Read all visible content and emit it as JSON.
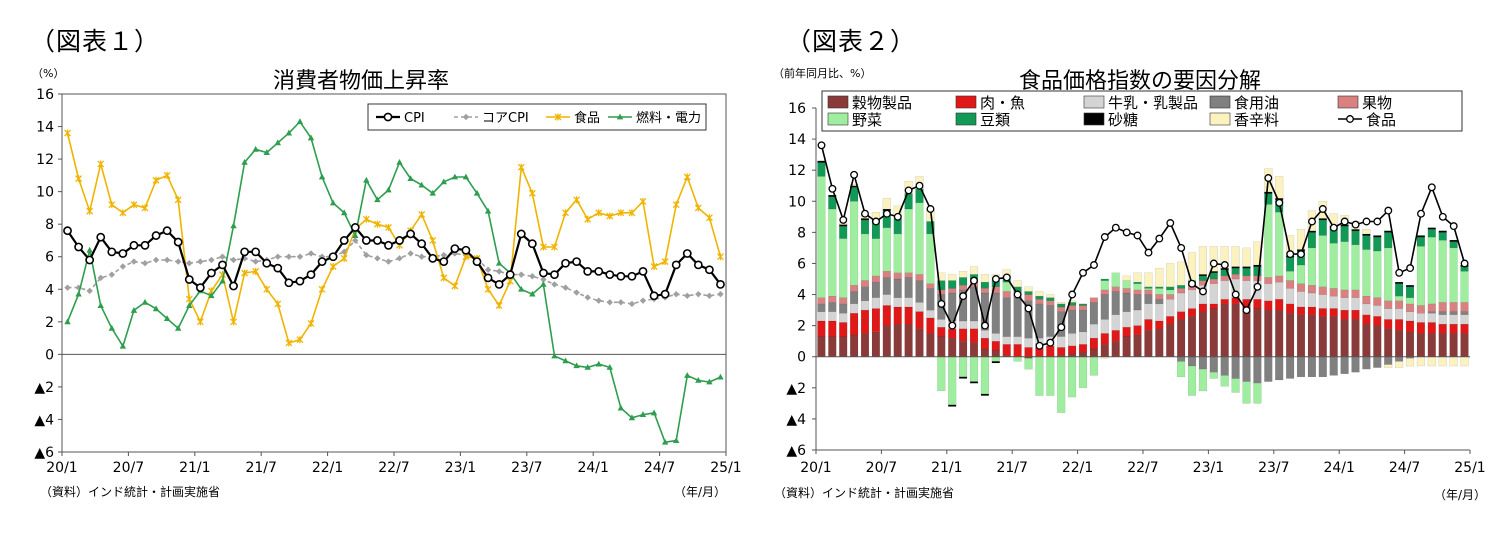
{
  "figure1": {
    "label": "（図表１）",
    "chart_data": {
      "type": "line",
      "title": "消費者物価上昇率",
      "unit_label": "（%）",
      "source": "（資料）インド統計・計画実施省",
      "x_unit": "（年/月）",
      "x_tick_labels": [
        "20/1",
        "20/7",
        "21/1",
        "21/7",
        "22/1",
        "22/7",
        "23/1",
        "23/7",
        "24/1",
        "24/7",
        "25/1"
      ],
      "y_ticks": [
        16,
        14,
        12,
        10,
        8,
        6,
        4,
        2,
        0,
        -2,
        -4,
        -6
      ],
      "y_tick_labels": [
        "16",
        "14",
        "12",
        "10",
        "8",
        "6",
        "4",
        "2",
        "0",
        "▲2",
        "▲4",
        "▲6"
      ],
      "ylim": [
        -6,
        16
      ],
      "legend_position": "top-right",
      "grid": false,
      "series": [
        {
          "name": "CPI",
          "color": "#000000",
          "marker": "circle",
          "style": "solid",
          "values": [
            7.6,
            6.6,
            5.8,
            7.2,
            6.3,
            6.2,
            6.7,
            6.7,
            7.3,
            7.6,
            6.9,
            4.6,
            4.1,
            5.0,
            5.5,
            4.2,
            6.3,
            6.3,
            5.6,
            5.3,
            4.4,
            4.5,
            4.9,
            5.7,
            6.0,
            7.0,
            7.8,
            7.0,
            7.0,
            6.7,
            7.0,
            7.4,
            6.8,
            5.9,
            5.7,
            6.5,
            6.4,
            5.7,
            4.7,
            4.3,
            4.9,
            7.4,
            6.8,
            5.0,
            4.9,
            5.6,
            5.7,
            5.1,
            5.1,
            4.9,
            4.8,
            4.8,
            5.1,
            3.6,
            3.7,
            5.5,
            6.2,
            5.5,
            5.2,
            4.3
          ]
        },
        {
          "name": "コアCPI",
          "color": "#a0a0a0",
          "marker": "diamond",
          "style": "dashed",
          "values": [
            4.1,
            4.1,
            3.9,
            4.7,
            4.9,
            5.4,
            5.7,
            5.6,
            5.8,
            5.8,
            5.7,
            5.6,
            5.7,
            5.8,
            6.0,
            5.8,
            5.9,
            5.7,
            5.8,
            6.0,
            6.0,
            6.0,
            6.2,
            6.0,
            6.0,
            6.3,
            7.0,
            6.1,
            5.9,
            5.7,
            5.9,
            6.2,
            6.0,
            6.0,
            6.1,
            6.2,
            6.1,
            5.9,
            5.2,
            5.1,
            4.9,
            4.9,
            4.8,
            4.6,
            4.3,
            4.1,
            3.8,
            3.5,
            3.3,
            3.2,
            3.2,
            3.1,
            3.3,
            3.4,
            3.5,
            3.7,
            3.6,
            3.7,
            3.6,
            3.7
          ]
        },
        {
          "name": "食品",
          "color": "#f0b400",
          "marker": "star",
          "style": "solid",
          "values": [
            13.6,
            10.8,
            8.8,
            11.7,
            9.2,
            8.7,
            9.2,
            9.0,
            10.7,
            11.0,
            9.5,
            3.4,
            2.0,
            3.9,
            4.9,
            2.0,
            5.0,
            5.1,
            4.0,
            3.1,
            0.7,
            0.9,
            1.9,
            4.0,
            5.4,
            5.9,
            7.7,
            8.3,
            8.0,
            7.8,
            6.7,
            7.6,
            8.6,
            7.0,
            4.7,
            4.2,
            6.0,
            5.9,
            4.0,
            3.0,
            4.5,
            11.5,
            9.9,
            6.6,
            6.6,
            8.7,
            9.5,
            8.3,
            8.7,
            8.5,
            8.7,
            8.7,
            9.4,
            5.4,
            5.7,
            9.2,
            10.9,
            9.0,
            8.4,
            6.0
          ]
        },
        {
          "name": "燃料・電力",
          "color": "#2e9e4e",
          "marker": "triangle",
          "style": "solid",
          "values": [
            2.0,
            3.7,
            6.4,
            3.0,
            1.6,
            0.5,
            2.7,
            3.2,
            2.8,
            2.2,
            1.6,
            3.0,
            3.9,
            3.6,
            4.5,
            7.9,
            11.8,
            12.6,
            12.4,
            13.0,
            13.6,
            14.3,
            13.3,
            10.9,
            9.3,
            8.7,
            7.3,
            10.7,
            9.5,
            10.1,
            11.8,
            10.8,
            10.4,
            9.9,
            10.6,
            10.9,
            10.9,
            9.9,
            8.8,
            5.6,
            5.0,
            4.0,
            3.7,
            4.3,
            -0.1,
            -0.4,
            -0.7,
            -0.8,
            -0.6,
            -0.8,
            -3.3,
            -3.9,
            -3.7,
            -3.6,
            -5.4,
            -5.3,
            -1.3,
            -1.6,
            -1.7,
            -1.4
          ]
        }
      ]
    }
  },
  "figure2": {
    "label": "（図表２）",
    "chart_data": {
      "type": "bar",
      "stacked": true,
      "title": "食品価格指数の要因分解",
      "unit_label": "（前年同月比、%）",
      "source": "（資料）インド統計・計画実施省",
      "x_unit": "（年/月）",
      "x_tick_labels": [
        "20/1",
        "20/7",
        "21/1",
        "21/7",
        "22/1",
        "22/7",
        "23/1",
        "23/7",
        "24/1",
        "24/7",
        "25/1"
      ],
      "y_ticks": [
        16,
        14,
        12,
        10,
        8,
        6,
        4,
        2,
        0,
        -2,
        -4,
        -6
      ],
      "y_tick_labels": [
        "16",
        "14",
        "12",
        "10",
        "8",
        "6",
        "4",
        "2",
        "0",
        "▲2",
        "▲4",
        "▲6"
      ],
      "ylim": [
        -6,
        16
      ],
      "legend_position": "top",
      "grid": false,
      "series": [
        {
          "name": "穀物製品",
          "color": "#8b3a3a",
          "values": [
            1.3,
            1.3,
            1.3,
            1.4,
            1.5,
            1.6,
            2.0,
            2.1,
            2.1,
            1.8,
            1.5,
            1.3,
            1.2,
            1.0,
            0.9,
            0.5,
            0.4,
            0.1,
            0.0,
            -0.1,
            0.0,
            0.0,
            0.1,
            0.2,
            0.3,
            0.5,
            0.8,
            1.0,
            1.3,
            1.4,
            1.7,
            1.8,
            2.1,
            2.4,
            2.6,
            2.9,
            3.1,
            3.4,
            3.4,
            3.2,
            3.1,
            3.0,
            3.0,
            2.8,
            2.7,
            2.7,
            2.6,
            2.6,
            2.4,
            2.4,
            2.1,
            2.0,
            1.8,
            1.7,
            1.6,
            1.5,
            1.5,
            1.5,
            1.5,
            1.5
          ]
        },
        {
          "name": "肉・魚",
          "color": "#e01818",
          "values": [
            1.0,
            1.0,
            0.9,
            1.4,
            1.5,
            1.5,
            1.3,
            1.1,
            1.1,
            1.1,
            1.0,
            0.6,
            0.6,
            0.8,
            0.9,
            0.7,
            0.6,
            0.7,
            0.8,
            0.6,
            0.6,
            0.7,
            0.5,
            0.5,
            0.5,
            0.7,
            0.7,
            0.7,
            0.6,
            0.6,
            0.7,
            0.5,
            0.5,
            0.5,
            0.5,
            0.5,
            0.3,
            0.3,
            0.4,
            0.5,
            0.6,
            0.6,
            0.7,
            0.6,
            0.5,
            0.5,
            0.5,
            0.5,
            0.6,
            0.6,
            0.6,
            0.6,
            0.6,
            0.7,
            0.7,
            0.7,
            0.7,
            0.6,
            0.6,
            0.6
          ]
        },
        {
          "name": "牛乳・乳製品",
          "color": "#d4d4d4",
          "values": [
            0.6,
            0.6,
            0.6,
            0.6,
            0.6,
            0.7,
            0.7,
            0.6,
            0.6,
            0.6,
            0.5,
            0.5,
            0.5,
            0.5,
            0.5,
            0.5,
            0.5,
            0.5,
            0.5,
            0.6,
            0.6,
            0.6,
            0.7,
            0.8,
            0.8,
            0.9,
            0.9,
            1.0,
            1.0,
            1.0,
            1.0,
            1.1,
            1.1,
            1.2,
            1.2,
            1.2,
            1.3,
            1.2,
            1.2,
            1.2,
            1.2,
            1.1,
            1.1,
            1.0,
            1.0,
            0.9,
            0.9,
            0.8,
            0.8,
            0.8,
            0.7,
            0.7,
            0.7,
            0.7,
            0.6,
            0.6,
            0.6,
            0.6,
            0.6,
            0.6
          ]
        },
        {
          "name": "食用油",
          "color": "#808080",
          "values": [
            0.5,
            0.6,
            0.6,
            0.8,
            0.9,
            1.0,
            1.1,
            1.2,
            1.3,
            1.4,
            1.4,
            1.6,
            1.8,
            2.0,
            2.2,
            2.4,
            2.6,
            2.5,
            2.5,
            2.4,
            2.2,
            2.0,
            1.6,
            1.5,
            1.4,
            1.4,
            1.6,
            1.5,
            1.2,
            1.0,
            0.6,
            0.3,
            0.0,
            -0.3,
            -0.6,
            -0.8,
            -1.0,
            -1.2,
            -1.4,
            -1.6,
            -1.7,
            -1.6,
            -1.5,
            -1.4,
            -1.3,
            -1.3,
            -1.3,
            -1.2,
            -1.1,
            -1.0,
            -0.8,
            -0.7,
            -0.5,
            -0.3,
            -0.1,
            0.0,
            0.1,
            0.2,
            0.2,
            0.2
          ]
        },
        {
          "name": "果物",
          "color": "#d98080",
          "values": [
            0.4,
            0.4,
            0.4,
            0.4,
            0.4,
            0.4,
            0.4,
            0.4,
            0.3,
            0.4,
            0.3,
            0.3,
            0.3,
            0.3,
            0.3,
            0.3,
            0.4,
            0.4,
            0.4,
            0.4,
            0.3,
            0.3,
            0.3,
            0.3,
            0.3,
            0.3,
            0.3,
            0.3,
            0.3,
            0.3,
            0.3,
            0.3,
            0.3,
            0.3,
            0.3,
            0.3,
            0.3,
            0.3,
            0.3,
            0.3,
            0.3,
            0.4,
            0.4,
            0.5,
            0.5,
            0.5,
            0.5,
            0.5,
            0.5,
            0.5,
            0.5,
            0.5,
            0.5,
            0.5,
            0.5,
            0.5,
            0.5,
            0.6,
            0.6,
            0.6
          ]
        },
        {
          "name": "野菜",
          "color": "#9fee9f",
          "values": [
            7.8,
            5.6,
            3.8,
            5.4,
            3.0,
            2.4,
            2.8,
            2.5,
            4.1,
            4.6,
            3.2,
            -2.2,
            -3.1,
            -1.3,
            -1.6,
            -2.4,
            -0.3,
            0.6,
            -0.3,
            -0.7,
            -2.5,
            -2.5,
            -3.6,
            -2.6,
            -2.0,
            -1.2,
            0.6,
            0.9,
            0.5,
            0.4,
            0.1,
            0.4,
            0.3,
            -1.0,
            -1.9,
            -1.4,
            -0.4,
            -0.7,
            -0.9,
            -1.4,
            -1.3,
            4.7,
            4.1,
            0.6,
            1.2,
            2.4,
            3.3,
            2.9,
            3.1,
            2.9,
            3.0,
            3.0,
            3.4,
            0.3,
            0.4,
            3.8,
            4.3,
            4.0,
            3.5,
            2.0
          ]
        },
        {
          "name": "豆類",
          "color": "#119955",
          "values": [
            0.9,
            0.8,
            0.8,
            0.9,
            0.9,
            1.1,
            1.1,
            1.0,
            1.0,
            0.9,
            0.8,
            0.6,
            0.5,
            0.5,
            0.5,
            0.4,
            0.4,
            0.4,
            0.3,
            0.2,
            0.2,
            0.2,
            0.2,
            0.2,
            0.1,
            0.0,
            0.1,
            0.0,
            0.0,
            0.1,
            0.1,
            0.1,
            0.2,
            0.2,
            0.3,
            0.3,
            0.4,
            0.4,
            0.4,
            0.5,
            0.6,
            0.7,
            0.8,
            0.9,
            0.9,
            1.0,
            1.0,
            1.0,
            1.0,
            0.9,
            0.9,
            0.9,
            1.0,
            0.8,
            0.7,
            0.6,
            0.5,
            0.5,
            0.4,
            0.3
          ]
        },
        {
          "name": "砂糖",
          "color": "#000000",
          "values": [
            0.1,
            0.1,
            0.1,
            0.1,
            0.1,
            0.1,
            0.1,
            0.0,
            0.0,
            0.0,
            0.0,
            0.0,
            -0.1,
            -0.1,
            -0.1,
            -0.1,
            -0.1,
            0.0,
            0.0,
            0.0,
            0.0,
            0.0,
            0.0,
            0.0,
            0.0,
            0.0,
            0.0,
            0.0,
            0.0,
            0.0,
            0.0,
            0.0,
            0.0,
            0.0,
            0.0,
            0.1,
            0.1,
            0.1,
            0.1,
            0.1,
            0.1,
            0.1,
            0.1,
            0.1,
            0.1,
            0.1,
            0.1,
            0.1,
            0.1,
            0.1,
            0.1,
            0.1,
            0.1,
            0.1,
            0.1,
            0.1,
            0.1,
            0.1,
            0.1,
            0.1
          ]
        },
        {
          "name": "香辛料",
          "color": "#fcf2c0",
          "values": [
            0.0,
            0.0,
            0.1,
            0.1,
            0.3,
            0.5,
            0.7,
            0.8,
            0.8,
            0.8,
            0.8,
            0.5,
            0.4,
            0.4,
            0.5,
            0.5,
            0.4,
            0.4,
            0.4,
            0.3,
            0.3,
            0.2,
            0.1,
            0.1,
            0.0,
            0.0,
            -0.1,
            0.0,
            0.3,
            0.6,
            0.9,
            1.2,
            1.5,
            1.5,
            1.8,
            1.8,
            1.6,
            1.4,
            1.3,
            1.2,
            1.5,
            1.5,
            1.4,
            1.3,
            1.3,
            1.3,
            1.1,
            0.8,
            0.6,
            0.5,
            0.3,
            0.0,
            -0.2,
            -0.4,
            -0.5,
            -0.6,
            -0.6,
            -0.6,
            -0.6,
            -0.6
          ]
        },
        {
          "name": "食品",
          "color": "#000000",
          "kind": "line",
          "values": [
            13.6,
            10.8,
            8.8,
            11.7,
            9.2,
            8.7,
            9.2,
            9.0,
            10.7,
            11.0,
            9.5,
            3.4,
            2.0,
            3.9,
            4.9,
            2.0,
            5.0,
            5.1,
            4.0,
            3.1,
            0.7,
            0.9,
            1.9,
            4.0,
            5.4,
            5.9,
            7.7,
            8.3,
            8.0,
            7.8,
            6.7,
            7.6,
            8.6,
            7.0,
            4.7,
            4.2,
            6.0,
            5.9,
            4.0,
            3.0,
            4.5,
            11.5,
            9.9,
            6.6,
            6.6,
            8.7,
            9.5,
            8.3,
            8.7,
            8.5,
            8.7,
            8.7,
            9.4,
            5.4,
            5.7,
            9.2,
            10.9,
            9.0,
            8.4,
            6.0
          ]
        }
      ]
    }
  }
}
